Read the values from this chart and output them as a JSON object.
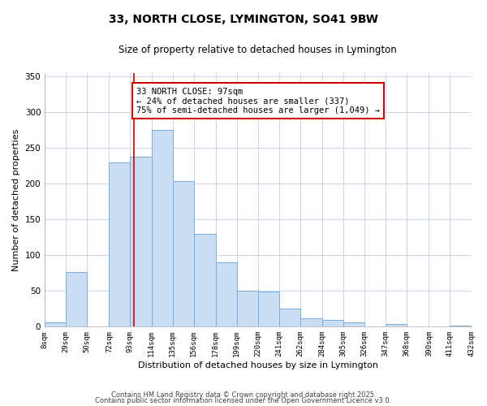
{
  "title": "33, NORTH CLOSE, LYMINGTON, SO41 9BW",
  "subtitle": "Size of property relative to detached houses in Lymington",
  "xlabel": "Distribution of detached houses by size in Lymington",
  "ylabel": "Number of detached properties",
  "bar_edges": [
    8,
    29,
    50,
    72,
    93,
    114,
    135,
    156,
    178,
    199,
    220,
    241,
    262,
    284,
    305,
    326,
    347,
    368,
    390,
    411,
    432
  ],
  "bar_heights": [
    6,
    77,
    0,
    230,
    238,
    275,
    204,
    130,
    90,
    50,
    49,
    25,
    12,
    10,
    6,
    0,
    4,
    0,
    0,
    2
  ],
  "bar_color": "#c9ddf5",
  "bar_edgecolor": "#7aadda",
  "tick_labels": [
    "8sqm",
    "29sqm",
    "50sqm",
    "72sqm",
    "93sqm",
    "114sqm",
    "135sqm",
    "156sqm",
    "178sqm",
    "199sqm",
    "220sqm",
    "241sqm",
    "262sqm",
    "284sqm",
    "305sqm",
    "326sqm",
    "347sqm",
    "368sqm",
    "390sqm",
    "411sqm",
    "432sqm"
  ],
  "ylim": [
    0,
    355
  ],
  "yticks": [
    0,
    50,
    100,
    150,
    200,
    250,
    300,
    350
  ],
  "vline_x": 97,
  "vline_color": "#cc0000",
  "annotation_text": "33 NORTH CLOSE: 97sqm\n← 24% of detached houses are smaller (337)\n75% of semi-detached houses are larger (1,049) →",
  "annotation_box_color": "#ffffff",
  "annotation_box_edgecolor": "#cc0000",
  "footer1": "Contains HM Land Registry data © Crown copyright and database right 2025.",
  "footer2": "Contains public sector information licensed under the Open Government Licence v3.0.",
  "background_color": "#ffffff",
  "grid_color": "#c8d8ea",
  "title_fontsize": 10,
  "subtitle_fontsize": 8.5,
  "ylabel_fontsize": 8,
  "xlabel_fontsize": 8,
  "tick_fontsize": 6.5,
  "footer_fontsize": 6,
  "annotation_fontsize": 7.5
}
